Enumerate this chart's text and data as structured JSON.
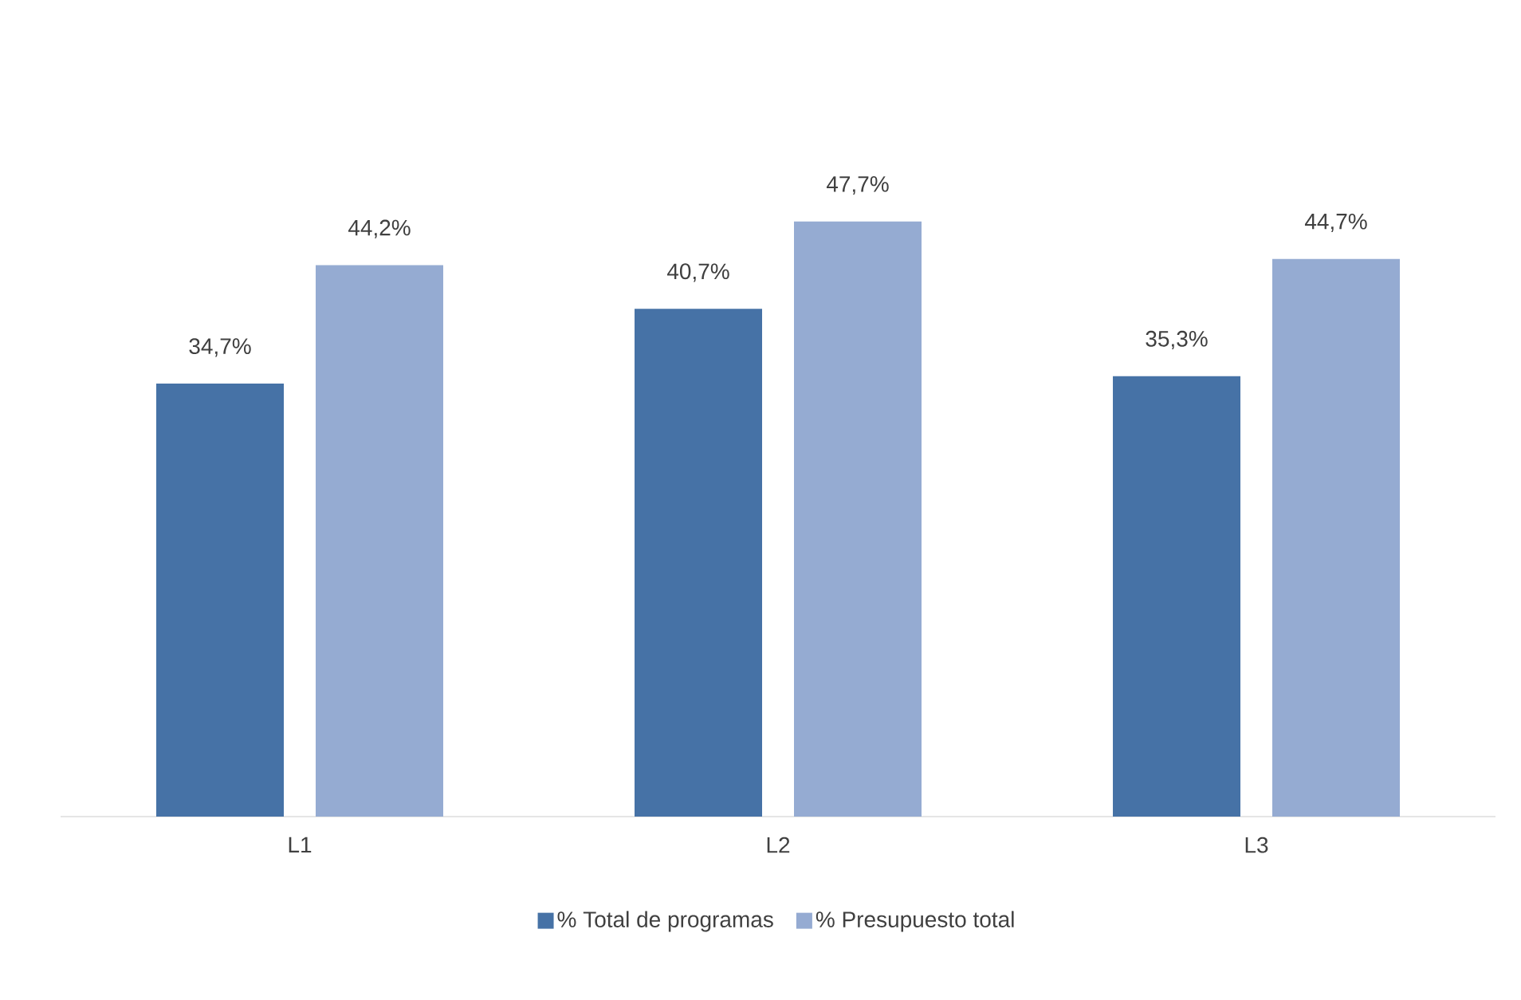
{
  "chart_data": {
    "type": "bar",
    "categories": [
      "L1",
      "L2",
      "L3"
    ],
    "series": [
      {
        "name": "% Total de programas",
        "color": "#4672a6",
        "values": [
          34.7,
          40.7,
          35.3
        ],
        "value_labels": [
          "34,7%",
          "40,7%",
          "35,3%"
        ]
      },
      {
        "name": "% Presupuesto total",
        "color": "#95abd2",
        "values": [
          44.2,
          47.7,
          44.7
        ],
        "value_labels": [
          "44,2%",
          "47,7%",
          "44,7%"
        ]
      }
    ],
    "legend": "bottom",
    "grid": false
  }
}
